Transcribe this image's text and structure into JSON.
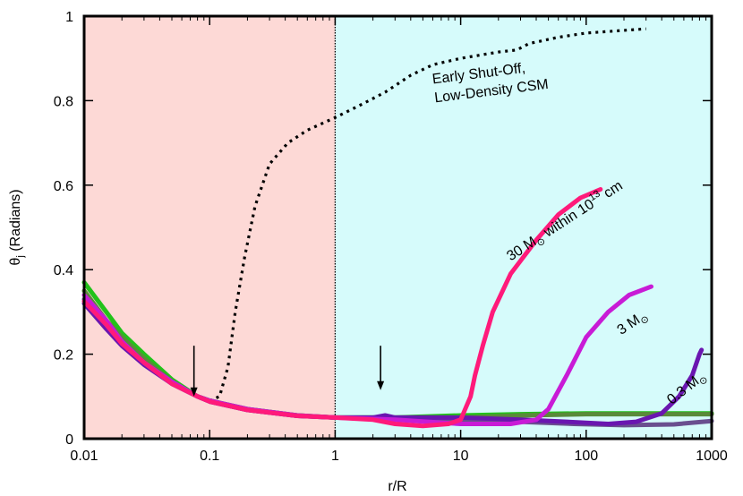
{
  "chart_data": {
    "type": "line",
    "xlabel": "r/R",
    "ylabel": "θ",
    "ylabel_sub": "j",
    "ylabel_unit": "(Radians)",
    "xscale": "log",
    "xlim": [
      0.01,
      1000
    ],
    "ylim": [
      0,
      1
    ],
    "x_ticks": [
      {
        "v": 0.01,
        "label": "0.01"
      },
      {
        "v": 0.1,
        "label": "0.1"
      },
      {
        "v": 1,
        "label": "1"
      },
      {
        "v": 10,
        "label": "10"
      },
      {
        "v": 100,
        "label": "100"
      },
      {
        "v": 1000,
        "label": "1000"
      }
    ],
    "y_ticks": [
      {
        "v": 0,
        "label": "0"
      },
      {
        "v": 0.2,
        "label": "0.2"
      },
      {
        "v": 0.4,
        "label": "0.4"
      },
      {
        "v": 0.6,
        "label": "0.6"
      },
      {
        "v": 0.8,
        "label": "0.8"
      },
      {
        "v": 1,
        "label": "1"
      }
    ],
    "regions": [
      {
        "x0": 0.01,
        "x1": 1,
        "color": "#fdd9d6"
      },
      {
        "x0": 1,
        "x1": 1000,
        "color": "#d6fbfb"
      }
    ],
    "divider_x": 1,
    "grid": false,
    "series": [
      {
        "style": "dotted",
        "color": "#000000",
        "points": [
          [
            0.1,
            0.09
          ],
          [
            0.12,
            0.1
          ],
          [
            0.14,
            0.17
          ],
          [
            0.16,
            0.3
          ],
          [
            0.19,
            0.43
          ],
          [
            0.23,
            0.55
          ],
          [
            0.3,
            0.65
          ],
          [
            0.42,
            0.7
          ],
          [
            0.6,
            0.73
          ],
          [
            1,
            0.76
          ],
          [
            1.6,
            0.79
          ],
          [
            2.5,
            0.82
          ],
          [
            4,
            0.86
          ],
          [
            6,
            0.885
          ],
          [
            10,
            0.9
          ],
          [
            20,
            0.915
          ],
          [
            28,
            0.92
          ],
          [
            35,
            0.935
          ],
          [
            60,
            0.95
          ],
          [
            100,
            0.96
          ],
          [
            300,
            0.97
          ]
        ]
      },
      {
        "style": "solid",
        "color": "#22c21a",
        "points": [
          [
            0.01,
            0.37
          ],
          [
            0.015,
            0.3
          ],
          [
            0.02,
            0.25
          ],
          [
            0.03,
            0.2
          ],
          [
            0.05,
            0.14
          ],
          [
            0.08,
            0.1
          ],
          [
            0.1,
            0.09
          ],
          [
            0.2,
            0.07
          ],
          [
            0.5,
            0.055
          ],
          [
            1,
            0.05
          ],
          [
            3,
            0.05
          ],
          [
            10,
            0.055
          ],
          [
            30,
            0.058
          ],
          [
            100,
            0.06
          ],
          [
            1000,
            0.06
          ]
        ]
      },
      {
        "style": "solid",
        "color": "#5a8a3a",
        "points": [
          [
            0.01,
            0.35
          ],
          [
            0.015,
            0.28
          ],
          [
            0.02,
            0.24
          ],
          [
            0.03,
            0.19
          ],
          [
            0.05,
            0.135
          ],
          [
            0.08,
            0.1
          ],
          [
            0.1,
            0.09
          ],
          [
            0.2,
            0.07
          ],
          [
            0.5,
            0.055
          ],
          [
            1,
            0.05
          ],
          [
            3,
            0.05
          ],
          [
            10,
            0.05
          ],
          [
            30,
            0.055
          ],
          [
            100,
            0.058
          ],
          [
            1000,
            0.058
          ]
        ]
      },
      {
        "style": "solid",
        "color": "#6a4f8f",
        "points": [
          [
            0.01,
            0.33
          ],
          [
            0.015,
            0.27
          ],
          [
            0.02,
            0.23
          ],
          [
            0.03,
            0.18
          ],
          [
            0.05,
            0.13
          ],
          [
            0.08,
            0.1
          ],
          [
            0.1,
            0.088
          ],
          [
            0.2,
            0.068
          ],
          [
            0.5,
            0.054
          ],
          [
            1,
            0.05
          ],
          [
            3,
            0.048
          ],
          [
            10,
            0.045
          ],
          [
            30,
            0.04
          ],
          [
            80,
            0.035
          ],
          [
            200,
            0.032
          ],
          [
            500,
            0.034
          ],
          [
            1000,
            0.042
          ]
        ]
      },
      {
        "style": "solid",
        "color": "#6a16b0",
        "points": [
          [
            0.01,
            0.32
          ],
          [
            0.015,
            0.26
          ],
          [
            0.02,
            0.22
          ],
          [
            0.03,
            0.175
          ],
          [
            0.05,
            0.13
          ],
          [
            0.08,
            0.1
          ],
          [
            0.1,
            0.088
          ],
          [
            0.2,
            0.068
          ],
          [
            0.5,
            0.054
          ],
          [
            1,
            0.05
          ],
          [
            2,
            0.05
          ],
          [
            2.5,
            0.055
          ],
          [
            3,
            0.05
          ],
          [
            10,
            0.05
          ],
          [
            30,
            0.045
          ],
          [
            70,
            0.04
          ],
          [
            150,
            0.035
          ],
          [
            250,
            0.04
          ],
          [
            400,
            0.06
          ],
          [
            550,
            0.1
          ],
          [
            700,
            0.15
          ],
          [
            800,
            0.2
          ],
          [
            830,
            0.21
          ]
        ]
      },
      {
        "style": "solid",
        "color": "#c81bd6",
        "points": [
          [
            0.01,
            0.34
          ],
          [
            0.015,
            0.28
          ],
          [
            0.02,
            0.23
          ],
          [
            0.03,
            0.18
          ],
          [
            0.05,
            0.135
          ],
          [
            0.08,
            0.1
          ],
          [
            0.1,
            0.09
          ],
          [
            0.2,
            0.07
          ],
          [
            0.5,
            0.055
          ],
          [
            1,
            0.05
          ],
          [
            3,
            0.045
          ],
          [
            10,
            0.035
          ],
          [
            25,
            0.035
          ],
          [
            40,
            0.045
          ],
          [
            50,
            0.07
          ],
          [
            70,
            0.15
          ],
          [
            100,
            0.24
          ],
          [
            150,
            0.3
          ],
          [
            220,
            0.34
          ],
          [
            330,
            0.36
          ]
        ]
      },
      {
        "style": "solid",
        "color": "#ff1a7a",
        "points": [
          [
            0.01,
            0.325
          ],
          [
            0.015,
            0.27
          ],
          [
            0.02,
            0.225
          ],
          [
            0.03,
            0.18
          ],
          [
            0.05,
            0.13
          ],
          [
            0.08,
            0.1
          ],
          [
            0.1,
            0.088
          ],
          [
            0.2,
            0.068
          ],
          [
            0.5,
            0.054
          ],
          [
            1,
            0.05
          ],
          [
            2,
            0.045
          ],
          [
            3,
            0.035
          ],
          [
            5,
            0.03
          ],
          [
            8,
            0.035
          ],
          [
            10,
            0.045
          ],
          [
            12,
            0.1
          ],
          [
            13,
            0.15
          ],
          [
            15,
            0.22
          ],
          [
            18,
            0.3
          ],
          [
            25,
            0.39
          ],
          [
            40,
            0.47
          ],
          [
            60,
            0.53
          ],
          [
            90,
            0.57
          ],
          [
            130,
            0.59
          ]
        ]
      }
    ],
    "arrows": [
      {
        "x": 0.075,
        "y_top": 0.22,
        "y_tip": 0.1
      },
      {
        "x": 2.3,
        "y_top": 0.22,
        "y_tip": 0.115
      }
    ],
    "annotations": [
      {
        "id": "early",
        "lines": [
          "Early Shut-Off,",
          "Low-Density CSM"
        ],
        "x": 6,
        "y": 0.84,
        "rotate": -7
      },
      {
        "id": "m30",
        "text": "30 M",
        "sub_after": "within 10",
        "sup": "13",
        "tail": " cm",
        "x": 25,
        "y": 0.42,
        "rotate": -33
      },
      {
        "id": "m3",
        "text": "3 M",
        "x": 190,
        "y": 0.245,
        "rotate": -34
      },
      {
        "id": "m03",
        "text": "0.3 M",
        "x": 480,
        "y": 0.08,
        "rotate": -38
      }
    ],
    "sun_symbol": "⊙"
  }
}
